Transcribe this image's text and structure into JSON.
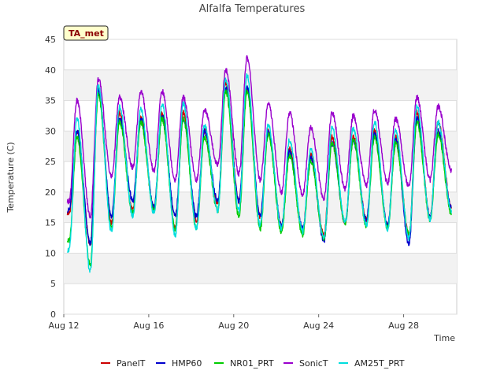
{
  "chart_data": {
    "type": "line",
    "title": "Alfalfa Temperatures",
    "xlabel": "Time",
    "ylabel": "Temperature (C)",
    "badge": "TA_met",
    "xlim": [
      "2023-08-12",
      "2023-08-30 12:00"
    ],
    "ylim": [
      0,
      45
    ],
    "yticks": [
      0,
      5,
      10,
      15,
      20,
      25,
      30,
      35,
      40,
      45
    ],
    "xticks": [
      {
        "value": "2023-08-12",
        "label": "Aug 12"
      },
      {
        "value": "2023-08-16",
        "label": "Aug 16"
      },
      {
        "value": "2023-08-20",
        "label": "Aug 20"
      },
      {
        "value": "2023-08-24",
        "label": "Aug 24"
      },
      {
        "value": "2023-08-28",
        "label": "Aug 28"
      }
    ],
    "grid": true,
    "legend_position": "bottom",
    "daily_extremes_note_free": true,
    "days": [
      "Aug 12",
      "Aug 13",
      "Aug 14",
      "Aug 15",
      "Aug 16",
      "Aug 17",
      "Aug 18",
      "Aug 19",
      "Aug 20",
      "Aug 21",
      "Aug 22",
      "Aug 23",
      "Aug 24",
      "Aug 25",
      "Aug 26",
      "Aug 27",
      "Aug 28",
      "Aug 29",
      "Aug 30"
    ],
    "series": [
      {
        "name": "PanelT",
        "color": "#cc0000",
        "daily_min": [
          16.5,
          11.5,
          15.0,
          17.0,
          17.0,
          14.0,
          15.0,
          18.0,
          18.5,
          16.0,
          14.5,
          14.0,
          13.0,
          15.0,
          15.5,
          14.5,
          13.0,
          16.0,
          17.5
        ],
        "daily_max": [
          30.0,
          37.0,
          33.0,
          32.5,
          33.0,
          33.0,
          30.0,
          38.0,
          37.0,
          30.0,
          27.0,
          26.0,
          29.0,
          29.0,
          30.0,
          29.0,
          33.0,
          31.5,
          30.5
        ]
      },
      {
        "name": "HMP60",
        "color": "#0000cc",
        "daily_min": [
          17.0,
          11.5,
          16.0,
          18.5,
          17.5,
          16.0,
          16.0,
          18.5,
          18.5,
          16.0,
          14.5,
          14.0,
          12.0,
          15.0,
          15.5,
          14.5,
          11.5,
          16.0,
          17.5
        ],
        "daily_max": [
          30.0,
          36.5,
          32.0,
          32.0,
          32.5,
          32.0,
          30.0,
          37.0,
          37.0,
          30.0,
          26.5,
          25.5,
          28.0,
          28.5,
          29.5,
          28.5,
          32.0,
          30.0,
          30.0
        ]
      },
      {
        "name": "NR01_PRT",
        "color": "#00cc00",
        "daily_min": [
          12.0,
          8.0,
          14.0,
          16.5,
          17.0,
          14.0,
          14.0,
          17.0,
          16.0,
          14.0,
          13.5,
          13.0,
          12.5,
          15.0,
          14.5,
          14.0,
          13.0,
          15.5,
          16.5
        ],
        "daily_max": [
          29.0,
          36.0,
          31.5,
          31.5,
          32.0,
          32.0,
          29.0,
          36.5,
          36.5,
          29.5,
          26.0,
          25.0,
          28.0,
          28.5,
          29.0,
          28.0,
          31.5,
          29.5,
          29.5
        ]
      },
      {
        "name": "SonicT",
        "color": "#9900cc",
        "daily_min": [
          18.5,
          16.0,
          22.5,
          24.0,
          23.5,
          22.0,
          22.0,
          24.5,
          23.0,
          22.0,
          20.0,
          19.5,
          19.0,
          20.5,
          21.0,
          21.5,
          21.0,
          22.0,
          23.5
        ],
        "daily_max": [
          35.0,
          38.5,
          35.5,
          36.5,
          36.5,
          35.5,
          33.5,
          40.0,
          42.0,
          34.5,
          33.0,
          30.5,
          33.0,
          32.5,
          33.5,
          32.0,
          35.5,
          34.0,
          33.0
        ]
      },
      {
        "name": "AM25T_PRT",
        "color": "#00dddd",
        "daily_min": [
          10.5,
          7.0,
          13.5,
          16.0,
          16.5,
          13.0,
          14.0,
          17.0,
          17.0,
          14.5,
          14.0,
          13.5,
          12.5,
          15.0,
          14.5,
          14.0,
          12.5,
          15.5,
          17.0
        ],
        "daily_max": [
          32.0,
          37.5,
          34.0,
          33.5,
          34.5,
          34.5,
          31.0,
          38.5,
          39.0,
          31.0,
          28.5,
          27.0,
          30.5,
          30.5,
          31.5,
          30.0,
          34.0,
          31.5,
          31.0
        ]
      }
    ]
  }
}
